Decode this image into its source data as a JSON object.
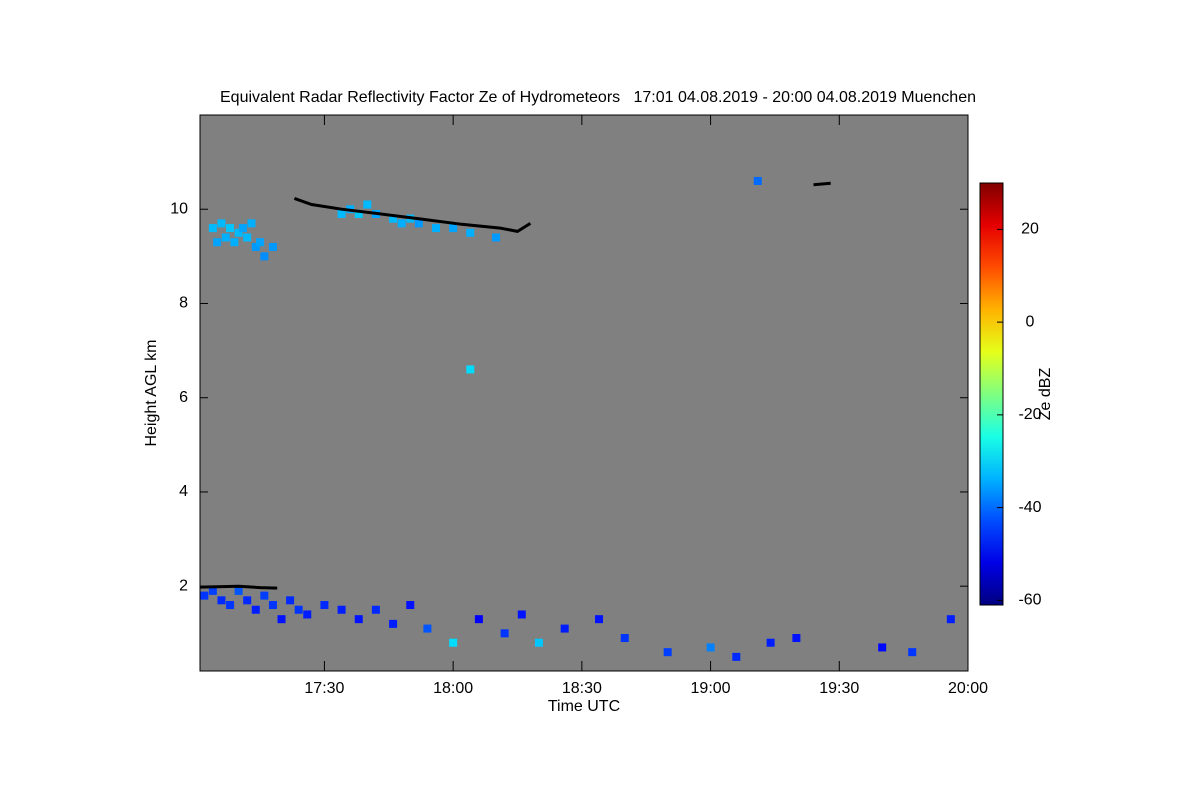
{
  "chart_data": {
    "type": "heatmap",
    "title": "Equivalent Radar Reflectivity Factor Ze of Hydrometeors   17:01 04.08.2019 - 20:00 04.08.2019 Muenchen",
    "x_label": "Time UTC",
    "y_label": "Height AGL km",
    "colorbar_label": "Ze dBZ",
    "xlim": [
      1,
      180
    ],
    "xticks": [
      {
        "value": 30,
        "label": "17:30"
      },
      {
        "value": 60,
        "label": "18:00"
      },
      {
        "value": 90,
        "label": "18:30"
      },
      {
        "value": 120,
        "label": "19:00"
      },
      {
        "value": 150,
        "label": "19:30"
      },
      {
        "value": 180,
        "label": "20:00"
      }
    ],
    "ylim": [
      0.2,
      12
    ],
    "yticks": [
      2,
      4,
      6,
      8,
      10
    ],
    "clim": [
      -61,
      30
    ],
    "cticks": [
      -60,
      -40,
      -20,
      0,
      20
    ],
    "colormap": "jet",
    "background": "#808080",
    "echoes": {
      "x": [
        4,
        5,
        6,
        7,
        8,
        9,
        10,
        11,
        12,
        13,
        14,
        15,
        16,
        18,
        34,
        36,
        38,
        40,
        42,
        46,
        48,
        50,
        52,
        56,
        60,
        64,
        70,
        2,
        4,
        6,
        8,
        10,
        12,
        14,
        16,
        18,
        20,
        22,
        24,
        26,
        30,
        34,
        38,
        42,
        46,
        50,
        54,
        60,
        66,
        72,
        76,
        80,
        86,
        94,
        100,
        110,
        120,
        126,
        134,
        140,
        160,
        167,
        176,
        64,
        131
      ],
      "y": [
        9.6,
        9.3,
        9.7,
        9.4,
        9.6,
        9.3,
        9.5,
        9.6,
        9.4,
        9.7,
        9.2,
        9.3,
        9.0,
        9.2,
        9.9,
        10.0,
        9.9,
        10.1,
        9.9,
        9.8,
        9.7,
        9.8,
        9.7,
        9.6,
        9.6,
        9.5,
        9.4,
        1.8,
        1.9,
        1.7,
        1.6,
        1.9,
        1.7,
        1.5,
        1.8,
        1.6,
        1.3,
        1.7,
        1.5,
        1.4,
        1.6,
        1.5,
        1.3,
        1.5,
        1.2,
        1.6,
        1.1,
        0.8,
        1.3,
        1.0,
        1.4,
        0.8,
        1.1,
        1.3,
        0.9,
        0.6,
        0.7,
        0.5,
        0.8,
        0.9,
        0.7,
        0.6,
        1.3,
        6.6,
        10.6
      ],
      "ze": [
        -33,
        -35,
        -33,
        -34,
        -32,
        -34,
        -33,
        -35,
        -33,
        -34,
        -36,
        -35,
        -37,
        -36,
        -33,
        -34,
        -32,
        -33,
        -35,
        -33,
        -34,
        -33,
        -36,
        -34,
        -35,
        -34,
        -36,
        -45,
        -44,
        -46,
        -45,
        -42,
        -46,
        -47,
        -44,
        -45,
        -48,
        -46,
        -45,
        -47,
        -46,
        -47,
        -48,
        -46,
        -47,
        -48,
        -42,
        -30,
        -50,
        -45,
        -48,
        -32,
        -47,
        -48,
        -45,
        -44,
        -38,
        -46,
        -47,
        -48,
        -49,
        -45,
        -47,
        -30,
        -40
      ]
    },
    "cloud_base": {
      "color": "#000000",
      "x": [
        1,
        5,
        10,
        15,
        19,
        null,
        23,
        27,
        34,
        43,
        52,
        62,
        71,
        75,
        78,
        null,
        144,
        148
      ],
      "y": [
        1.98,
        1.99,
        2.0,
        1.97,
        1.96,
        null,
        10.23,
        10.1,
        10.0,
        9.9,
        9.8,
        9.68,
        9.6,
        9.53,
        9.7,
        null,
        10.52,
        10.55
      ]
    }
  }
}
